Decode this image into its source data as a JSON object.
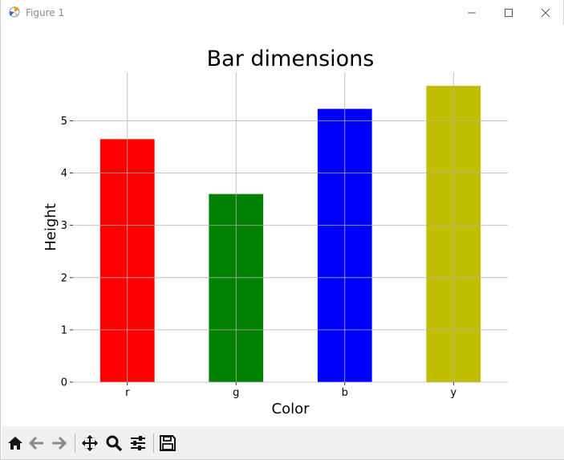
{
  "window": {
    "title": "Figure 1",
    "icons": {
      "app": "matplotlib-icon",
      "minimize": "minimize-icon",
      "maximize": "maximize-icon",
      "close": "close-icon"
    }
  },
  "toolbar": {
    "buttons": [
      {
        "icon": "home-icon"
      },
      {
        "icon": "back-arrow-icon"
      },
      {
        "icon": "forward-arrow-icon"
      },
      {
        "icon": "pan-icon"
      },
      {
        "icon": "zoom-icon"
      },
      {
        "icon": "configure-subplots-icon"
      },
      {
        "icon": "save-icon"
      }
    ]
  },
  "chart_data": {
    "type": "bar",
    "title": "Bar dimensions",
    "xlabel": "Color",
    "ylabel": "Height",
    "categories": [
      "r",
      "g",
      "b",
      "y"
    ],
    "values": [
      4.65,
      3.6,
      5.23,
      5.67
    ],
    "colors": [
      "#ff0000",
      "#008000",
      "#0000ff",
      "#bfbf00"
    ],
    "ylim": [
      0,
      5.93
    ],
    "yticks": [
      "0",
      "1",
      "2",
      "3",
      "4",
      "5"
    ],
    "grid": true
  }
}
